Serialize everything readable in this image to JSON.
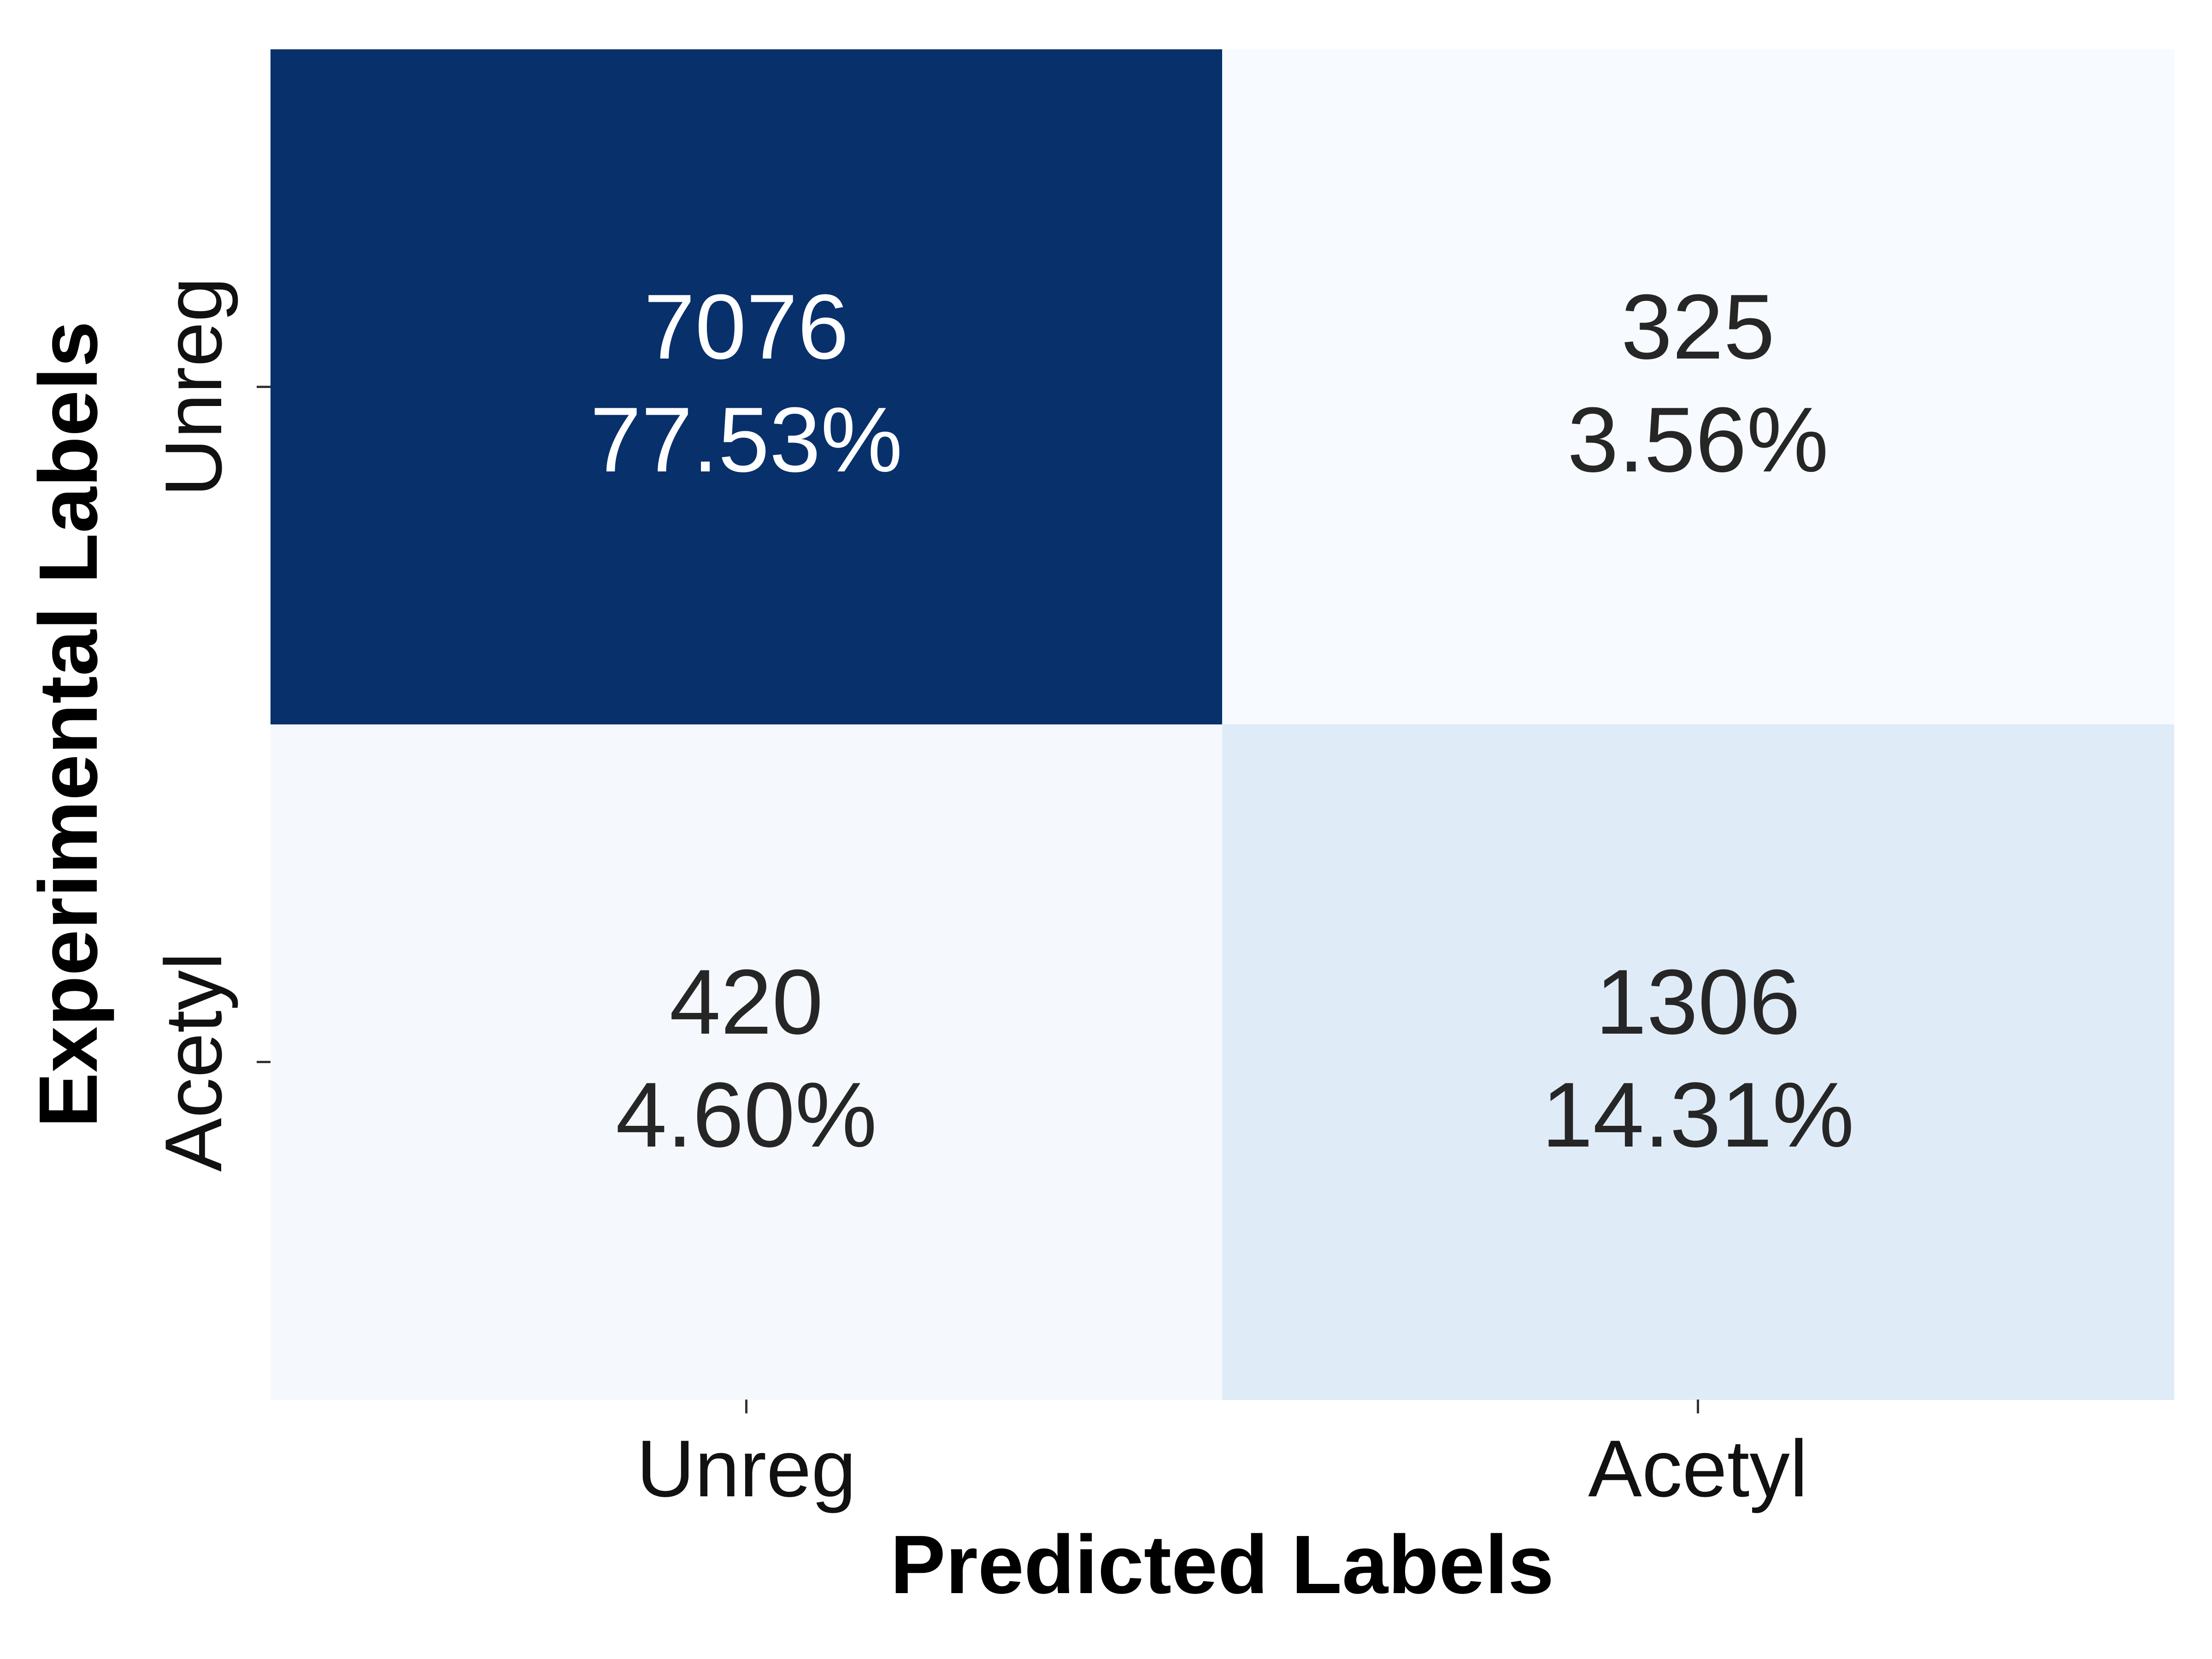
{
  "chart_data": {
    "type": "heatmap",
    "xlabel": "Predicted Labels",
    "ylabel": "Experimental Labels",
    "x_categories": [
      "Unreg",
      "Acetyl"
    ],
    "y_categories": [
      "Unreg",
      "Acetyl"
    ],
    "values": [
      [
        7076,
        325
      ],
      [
        420,
        1306
      ]
    ],
    "percent_labels": [
      [
        "77.53%",
        "3.56%"
      ],
      [
        "4.60%",
        "14.31%"
      ]
    ],
    "count_labels": [
      [
        "7076",
        "325"
      ],
      [
        "420",
        "1306"
      ]
    ],
    "colormap": "Blues",
    "colors": {
      "max": "#08306b",
      "min": "#f7fbff",
      "text_dark": "#262626",
      "text_light": "#ffffff"
    },
    "legend": "none",
    "grid": false
  }
}
